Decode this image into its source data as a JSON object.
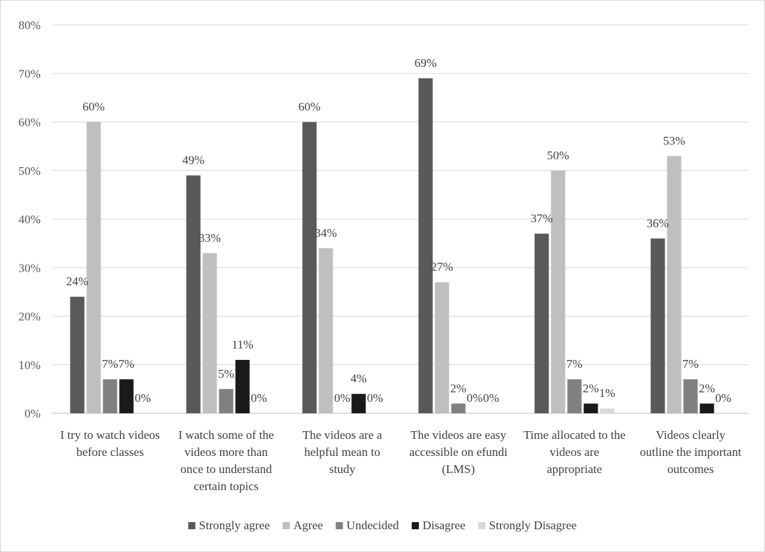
{
  "chart_data": {
    "type": "bar",
    "title": "",
    "xlabel": "",
    "ylabel": "",
    "ylim": [
      0,
      80
    ],
    "y_ticks": [
      "0%",
      "10%",
      "20%",
      "30%",
      "40%",
      "50%",
      "60%",
      "70%",
      "80%"
    ],
    "grid": true,
    "legend_position": "bottom",
    "categories": [
      [
        "I try to watch videos",
        "before classes"
      ],
      [
        "I watch some of the",
        "videos more than",
        "once to understand",
        "certain topics"
      ],
      [
        "The videos are a",
        "helpful mean to",
        "study"
      ],
      [
        "The videos are easy",
        "accessible on efundi",
        "(LMS)"
      ],
      [
        "Time allocated to the",
        "videos are",
        "appropriate"
      ],
      [
        "Videos clearly",
        "outline the important",
        "outcomes"
      ]
    ],
    "series": [
      {
        "name": "Strongly agree",
        "color": "#595959",
        "values": [
          24,
          49,
          60,
          69,
          37,
          36
        ]
      },
      {
        "name": "Agree",
        "color": "#bfbfbf",
        "values": [
          60,
          33,
          34,
          27,
          50,
          53
        ]
      },
      {
        "name": "Undecided",
        "color": "#808080",
        "values": [
          7,
          5,
          0,
          2,
          7,
          7
        ]
      },
      {
        "name": "Disagree",
        "color": "#1a1a1a",
        "values": [
          7,
          11,
          4,
          0,
          2,
          2
        ]
      },
      {
        "name": "Strongly Disagree",
        "color": "#d9d9d9",
        "values": [
          0,
          0,
          0,
          0,
          1,
          0
        ]
      }
    ],
    "data_labels": [
      [
        "24%",
        "60%",
        "7%",
        "7%",
        "0%"
      ],
      [
        "49%",
        "33%",
        "5%",
        "11%",
        "0%"
      ],
      [
        "60%",
        "34%",
        "0%",
        "4%",
        "0%"
      ],
      [
        "69%",
        "27%",
        "2%",
        "0%",
        "0%"
      ],
      [
        "37%",
        "50%",
        "7%",
        "2%",
        "1%"
      ],
      [
        "36%",
        "53%",
        "7%",
        "2%",
        "0%"
      ]
    ]
  }
}
